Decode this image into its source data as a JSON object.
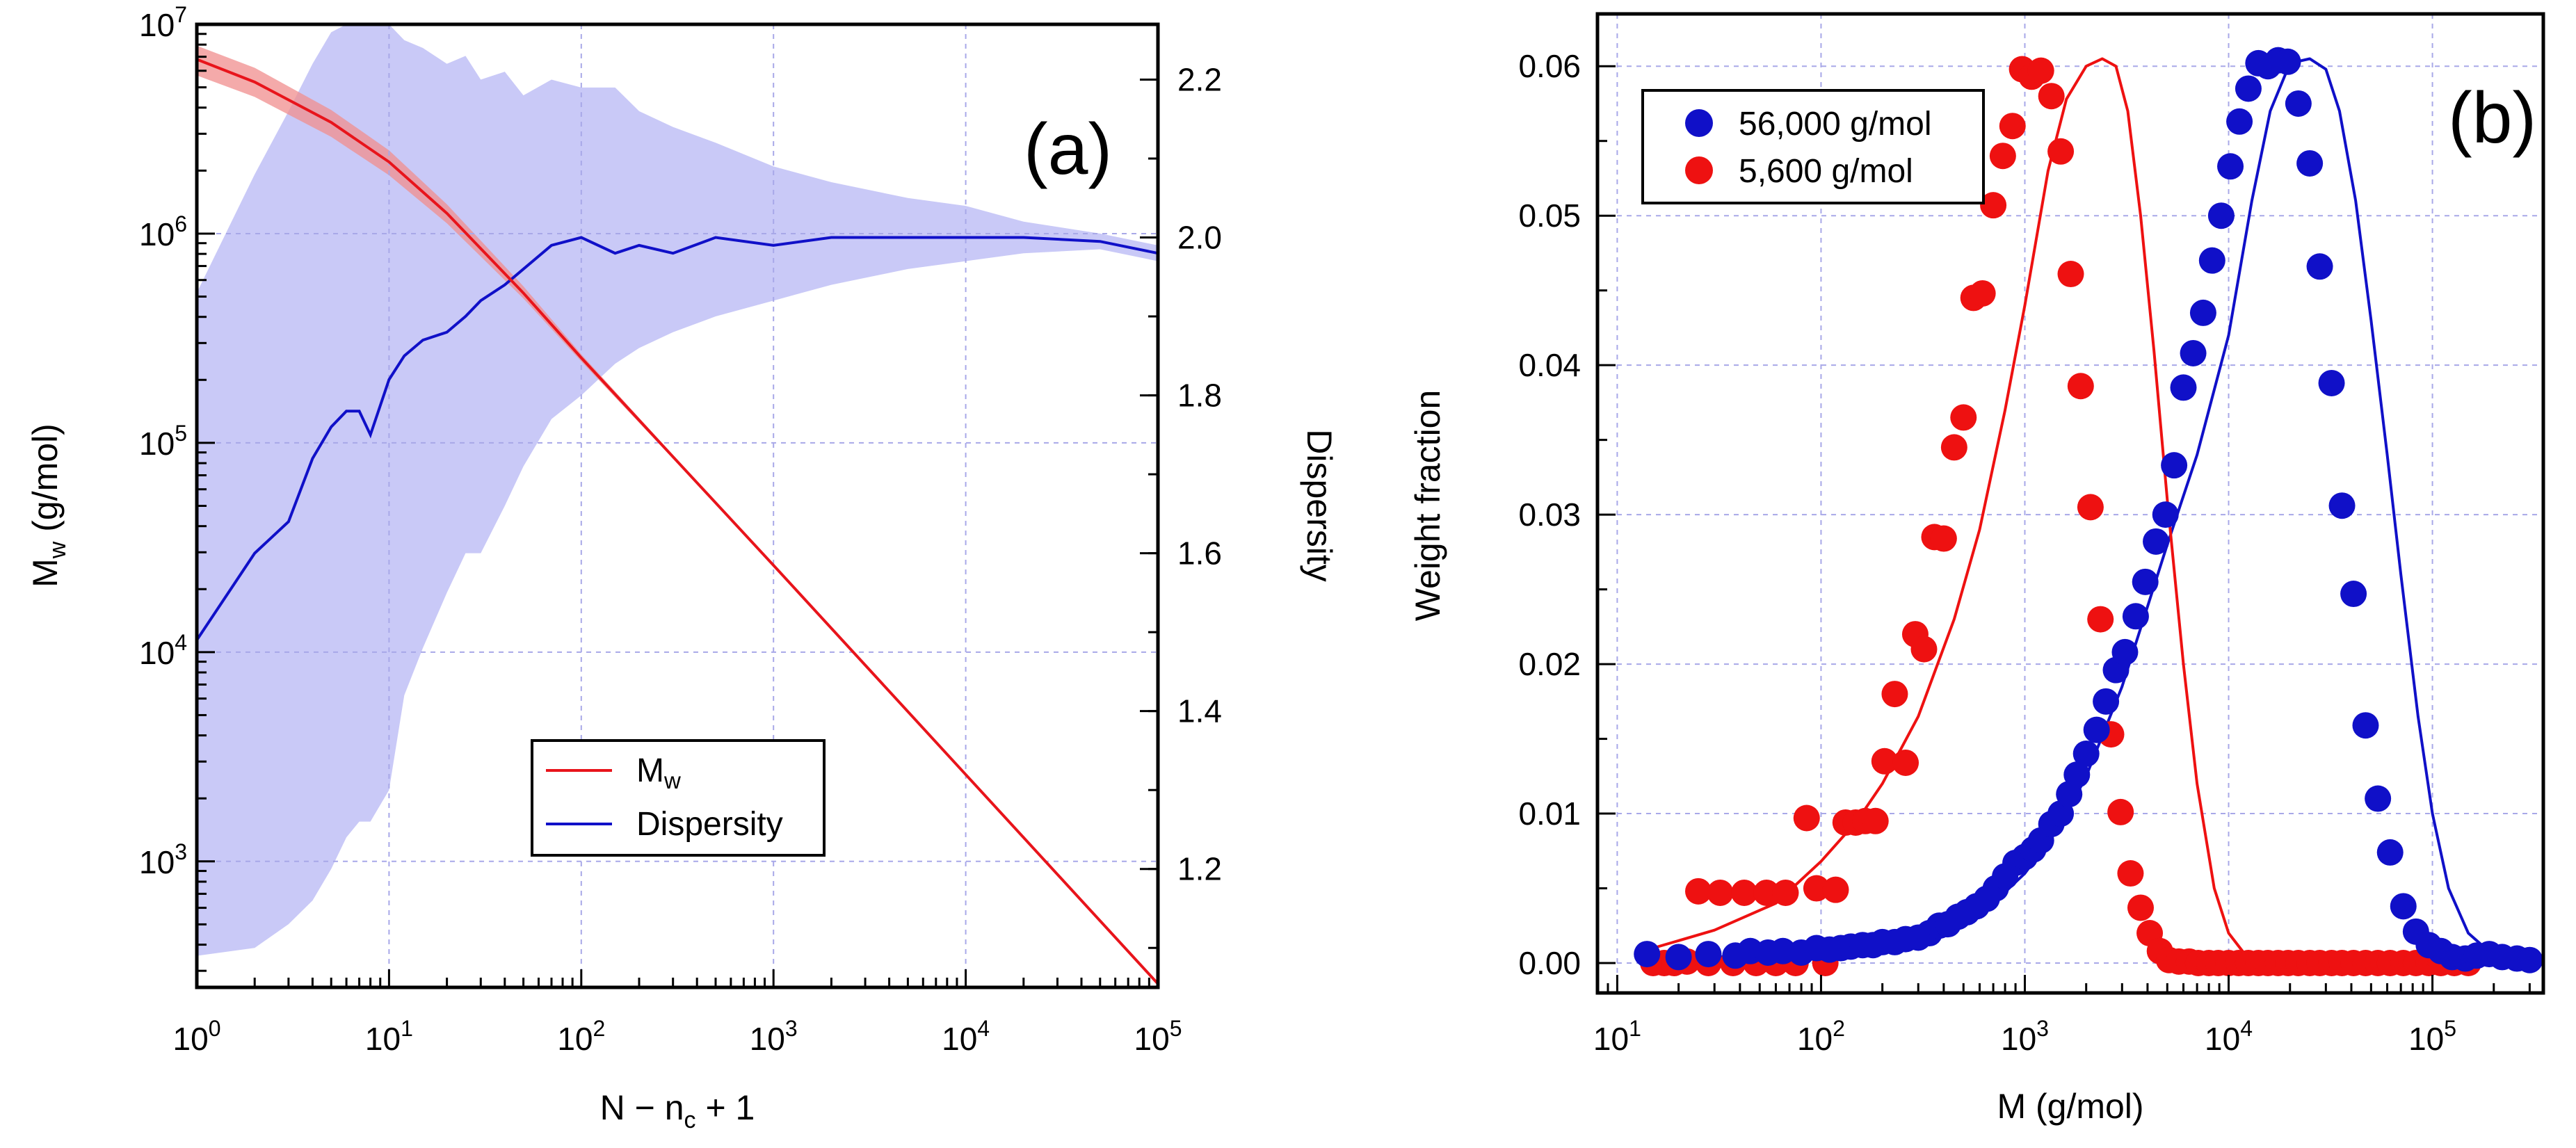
{
  "chart_data": [
    {
      "type": "line",
      "panel_label": "(a)",
      "xlabel": {
        "main": "N − n",
        "sub": "c",
        "tail": " + 1"
      },
      "ylabel_left": {
        "main": "M",
        "sub": "w",
        "tail": " (g/mol)"
      },
      "ylabel_right": "Dispersity",
      "x_scale": "log",
      "xlim": [
        1,
        100000
      ],
      "x_ticks": [
        {
          "v": 1,
          "base": "10",
          "exp": "0"
        },
        {
          "v": 10,
          "base": "10",
          "exp": "1"
        },
        {
          "v": 100,
          "base": "10",
          "exp": "2"
        },
        {
          "v": 1000,
          "base": "10",
          "exp": "3"
        },
        {
          "v": 10000,
          "base": "10",
          "exp": "4"
        },
        {
          "v": 100000,
          "base": "10",
          "exp": "5"
        }
      ],
      "y_left_scale": "log",
      "ylim_left": [
        250,
        10000000
      ],
      "y_left_ticks": [
        {
          "v": 1000,
          "base": "10",
          "exp": "3"
        },
        {
          "v": 10000,
          "base": "10",
          "exp": "4"
        },
        {
          "v": 100000,
          "base": "10",
          "exp": "5"
        },
        {
          "v": 1000000,
          "base": "10",
          "exp": "6"
        },
        {
          "v": 10000000,
          "base": "10",
          "exp": "7"
        }
      ],
      "ylim_right": [
        1.05,
        2.27
      ],
      "y_right_ticks": [
        "1.2",
        "1.4",
        "1.6",
        "1.8",
        "2.0",
        "2.2"
      ],
      "grid": true,
      "legend": {
        "position": "bottom-center",
        "entries": [
          {
            "main": "M",
            "sub": "w",
            "color": "#e8141b"
          },
          {
            "main": "Dispersity",
            "sub": "",
            "color": "#1010c8"
          }
        ]
      },
      "series": [
        {
          "name": "Mw",
          "axis": "left",
          "color": "#e8141b",
          "x": [
            1,
            2,
            5,
            10,
            20,
            50,
            100,
            1000,
            10000,
            100000
          ],
          "y": [
            6800000,
            5300000,
            3400000,
            2200000,
            1250000,
            520000,
            255000,
            26000,
            2600,
            260
          ],
          "band_upper": [
            7900000,
            6200000,
            3900000,
            2500000,
            1380000,
            560000,
            265000,
            26000,
            2600,
            260
          ],
          "band_lower": [
            5700000,
            4500000,
            2900000,
            1900000,
            1120000,
            490000,
            245000,
            26000,
            2600,
            260
          ],
          "band_color": "#f08e8e"
        },
        {
          "name": "Dispersity",
          "axis": "right",
          "color": "#1010c8",
          "x": [
            1,
            2,
            3,
            4,
            5,
            6,
            7,
            8,
            10,
            12,
            15,
            20,
            25,
            30,
            40,
            50,
            70,
            100,
            150,
            200,
            300,
            500,
            1000,
            2000,
            5000,
            10000,
            20000,
            50000,
            100000
          ],
          "y": [
            1.49,
            1.6,
            1.64,
            1.72,
            1.76,
            1.78,
            1.78,
            1.75,
            1.82,
            1.85,
            1.87,
            1.88,
            1.9,
            1.92,
            1.94,
            1.96,
            1.99,
            2.0,
            1.98,
            1.99,
            1.98,
            2.0,
            1.99,
            2.0,
            2.0,
            2.0,
            2.0,
            1.995,
            1.98
          ],
          "band_x": [
            1,
            2,
            3,
            4,
            5,
            6,
            7,
            8,
            10,
            12,
            15,
            20,
            25,
            30,
            40,
            50,
            70,
            100,
            150,
            200,
            300,
            500,
            1000,
            2000,
            5000,
            10000,
            20000,
            50000,
            100000
          ],
          "band_upper": [
            1.93,
            2.08,
            2.16,
            2.22,
            2.26,
            2.27,
            2.27,
            2.27,
            2.27,
            2.25,
            2.24,
            2.22,
            2.23,
            2.2,
            2.21,
            2.18,
            2.2,
            2.19,
            2.19,
            2.16,
            2.14,
            2.12,
            2.09,
            2.07,
            2.05,
            2.04,
            2.02,
            2.005,
            1.99
          ],
          "band_lower": [
            1.09,
            1.1,
            1.13,
            1.16,
            1.2,
            1.24,
            1.26,
            1.26,
            1.3,
            1.42,
            1.48,
            1.55,
            1.6,
            1.6,
            1.66,
            1.71,
            1.77,
            1.8,
            1.84,
            1.86,
            1.88,
            1.9,
            1.92,
            1.94,
            1.96,
            1.97,
            1.98,
            1.985,
            1.97
          ],
          "band_color": "#c9c9f7"
        }
      ]
    },
    {
      "type": "scatter",
      "panel_label": "(b)",
      "xlabel": "M (g/mol)",
      "ylabel": "Weight fraction",
      "x_scale": "log",
      "xlim": [
        8,
        350000
      ],
      "x_ticks": [
        {
          "v": 10,
          "base": "10",
          "exp": "1"
        },
        {
          "v": 100,
          "base": "10",
          "exp": "2"
        },
        {
          "v": 1000,
          "base": "10",
          "exp": "3"
        },
        {
          "v": 10000,
          "base": "10",
          "exp": "4"
        },
        {
          "v": 100000,
          "base": "10",
          "exp": "5"
        }
      ],
      "ylim": [
        -0.002,
        0.0635
      ],
      "y_ticks": [
        "0.00",
        "0.01",
        "0.02",
        "0.03",
        "0.04",
        "0.05",
        "0.06"
      ],
      "grid": true,
      "legend": {
        "position": "top-left",
        "entries": [
          {
            "label": "56,000 g/mol",
            "color": "#1010c8"
          },
          {
            "label": "5,600 g/mol",
            "color": "#ee1111"
          }
        ]
      },
      "series": [
        {
          "name": "56,000 g/mol",
          "color": "#1010c8",
          "points_x": [
            14,
            20,
            28,
            38,
            45,
            55,
            65,
            80,
            95,
            110,
            125,
            140,
            160,
            180,
            200,
            230,
            260,
            300,
            340,
            380,
            420,
            470,
            520,
            580,
            650,
            720,
            800,
            900,
            1000,
            1100,
            1200,
            1350,
            1500,
            1650,
            1800,
            2000,
            2250,
            2500,
            2800,
            3100,
            3500,
            3900,
            4400,
            4900,
            5400,
            6000,
            6700,
            7500,
            8300,
            9200,
            10200,
            11300,
            12500,
            14000,
            15600,
            17500,
            19500,
            22000,
            25000,
            28000,
            32000,
            36000,
            41000,
            47000,
            54000,
            62000,
            72000,
            83000,
            96000,
            110000,
            125000,
            145000,
            165000,
            190000,
            220000,
            260000,
            300000
          ],
          "points_y": [
            0.0006,
            0.0004,
            0.0006,
            0.0005,
            0.0008,
            0.0007,
            0.0008,
            0.0007,
            0.001,
            0.0009,
            0.001,
            0.0011,
            0.0012,
            0.0012,
            0.0014,
            0.0014,
            0.0016,
            0.0017,
            0.002,
            0.0025,
            0.0026,
            0.0031,
            0.0034,
            0.0038,
            0.0043,
            0.005,
            0.0058,
            0.0067,
            0.0071,
            0.0076,
            0.0082,
            0.0093,
            0.01,
            0.0113,
            0.0126,
            0.014,
            0.0156,
            0.0175,
            0.0196,
            0.0208,
            0.0232,
            0.0255,
            0.0282,
            0.03,
            0.0333,
            0.0385,
            0.0408,
            0.0435,
            0.047,
            0.05,
            0.0533,
            0.0563,
            0.0585,
            0.0602,
            0.06,
            0.0604,
            0.0603,
            0.0575,
            0.0535,
            0.0466,
            0.0388,
            0.0306,
            0.0247,
            0.0159,
            0.011,
            0.0074,
            0.0038,
            0.0021,
            0.0012,
            0.0008,
            0.0004,
            0.0003,
            0.0005,
            0.0006,
            0.0004,
            0.0003,
            0.0002
          ],
          "curve_x": [
            14,
            30,
            60,
            100,
            200,
            300,
            500,
            700,
            1000,
            1500,
            2000,
            3000,
            5000,
            7000,
            10000,
            13000,
            16000,
            20000,
            25000,
            30000,
            35000,
            42000,
            50000,
            60000,
            70000,
            85000,
            100000,
            120000,
            150000,
            200000,
            250000
          ],
          "curve_y": [
            0.0002,
            0.0004,
            0.0006,
            0.0008,
            0.0013,
            0.0018,
            0.0028,
            0.004,
            0.006,
            0.0092,
            0.0125,
            0.0185,
            0.028,
            0.034,
            0.042,
            0.051,
            0.057,
            0.0602,
            0.0605,
            0.0598,
            0.057,
            0.051,
            0.043,
            0.034,
            0.026,
            0.0165,
            0.01,
            0.005,
            0.002,
            0.0005,
            0.0002
          ]
        },
        {
          "name": "5,600 g/mol",
          "color": "#ee1111",
          "points_x": [
            15,
            17,
            19,
            22,
            25,
            28,
            32,
            37,
            42,
            48,
            54,
            60,
            67,
            75,
            85,
            95,
            105,
            118,
            132,
            148,
            165,
            185,
            205,
            230,
            260,
            290,
            320,
            360,
            400,
            450,
            500,
            560,
            620,
            700,
            780,
            870,
            970,
            1080,
            1200,
            1350,
            1500,
            1680,
            1880,
            2100,
            2350,
            2650,
            2950,
            3300,
            3700,
            4100,
            4600,
            5100,
            5700,
            6400,
            7100,
            8000,
            8900,
            10000,
            11200,
            12500,
            14000,
            15600,
            17500,
            19600,
            22000,
            25000,
            28000,
            32000,
            36000,
            41000,
            47000,
            54000,
            62000,
            72000,
            83000,
            96000,
            110000,
            128000,
            150000
          ],
          "points_y": [
            0.0,
            0.0,
            0.0,
            0.0001,
            0.0048,
            0.0,
            0.0047,
            0.0,
            0.0047,
            0.0,
            0.0047,
            0.0,
            0.0047,
            0.0,
            0.0097,
            0.005,
            0.0,
            0.0049,
            0.0094,
            0.0094,
            0.0095,
            0.0095,
            0.0135,
            0.018,
            0.0134,
            0.022,
            0.021,
            0.0285,
            0.0284,
            0.0345,
            0.0365,
            0.0445,
            0.0448,
            0.0507,
            0.054,
            0.056,
            0.0598,
            0.0593,
            0.0597,
            0.058,
            0.0543,
            0.0461,
            0.0386,
            0.0305,
            0.023,
            0.0153,
            0.0101,
            0.006,
            0.0037,
            0.002,
            0.0008,
            0.0002,
            0.0001,
            0.0001,
            0.0,
            0.0,
            0.0,
            0.0,
            0.0,
            0.0,
            0.0,
            0.0,
            0.0,
            0.0,
            0.0,
            0.0,
            0.0,
            0.0,
            0.0,
            0.0,
            0.0,
            0.0,
            0.0,
            0.0,
            0.0,
            0.0,
            0.0,
            0.0,
            0.0
          ],
          "curve_x": [
            15,
            30,
            60,
            100,
            150,
            200,
            300,
            450,
            600,
            800,
            1000,
            1300,
            1600,
            2000,
            2400,
            2800,
            3200,
            3700,
            4300,
            5000,
            6000,
            7000,
            8500,
            10000,
            12000,
            15000,
            20000
          ],
          "curve_y": [
            0.001,
            0.0022,
            0.004,
            0.0068,
            0.0095,
            0.012,
            0.0165,
            0.023,
            0.029,
            0.037,
            0.044,
            0.053,
            0.0578,
            0.06,
            0.0605,
            0.06,
            0.057,
            0.05,
            0.041,
            0.031,
            0.02,
            0.012,
            0.005,
            0.002,
            0.0006,
            0.0001,
            0.0
          ]
        }
      ]
    }
  ]
}
